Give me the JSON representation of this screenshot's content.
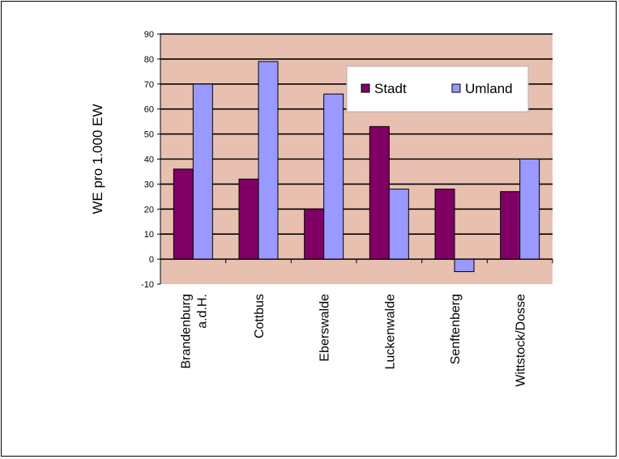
{
  "chart_data": {
    "type": "bar",
    "ylabel": "WE pro 1.000 EW",
    "xlabel": "",
    "title": "",
    "ylim": [
      -10,
      90
    ],
    "yticks": [
      90,
      80,
      70,
      60,
      50,
      40,
      30,
      20,
      10,
      0,
      -10
    ],
    "grid": true,
    "legend_position": "top-right",
    "plot_background": "#e8c0b0",
    "categories": [
      [
        "Brandenburg",
        "a.d.H."
      ],
      [
        "Cottbus"
      ],
      [
        "Eberswalde"
      ],
      [
        "Luckenwalde"
      ],
      [
        "Senftenberg"
      ],
      [
        "Wittstock/Dosse"
      ]
    ],
    "series": [
      {
        "name": "Stadt",
        "color": "#800066",
        "values": [
          36,
          32,
          20,
          53,
          28,
          27
        ]
      },
      {
        "name": "Umland",
        "color": "#9999ff",
        "values": [
          70,
          79,
          66,
          28,
          -5,
          40
        ]
      }
    ]
  }
}
